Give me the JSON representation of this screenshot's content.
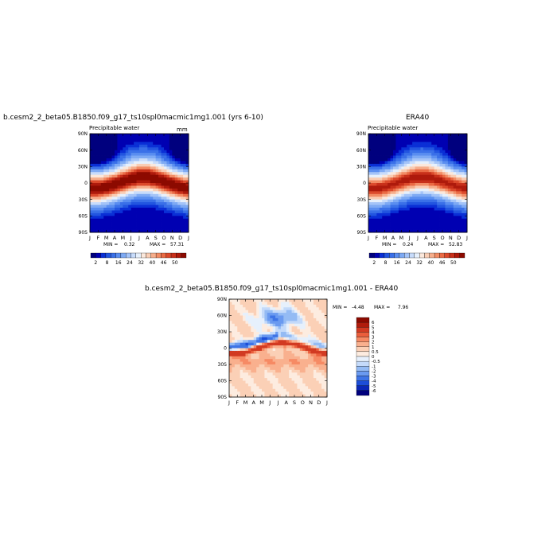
{
  "chart_data": [
    {
      "type": "heatmap",
      "title": "b.cesm2_2_beta05.B1850.f09_g17_ts10spl0macmic1mg1.001 (yrs 6-10)",
      "subtitle": "Precipitable water",
      "units": "mm",
      "x_ticks": [
        "J",
        "F",
        "M",
        "A",
        "M",
        "J",
        "J",
        "A",
        "S",
        "O",
        "N",
        "D",
        "J"
      ],
      "y_ticks": [
        "90N",
        "60N",
        "30N",
        "0",
        "30S",
        "60S",
        "90S"
      ],
      "min_label": "MIN =    0.32",
      "max_label": "MAX =   57.31",
      "min": 0.32,
      "max": 57.31,
      "colorbar_levels": [
        0,
        2,
        4,
        6,
        8,
        12,
        16,
        20,
        24,
        28,
        32,
        36,
        40,
        43,
        46,
        48,
        50,
        52,
        55,
        60
      ],
      "colorbar_labels": [
        "2",
        "8",
        "16",
        "24",
        "32",
        "40",
        "46",
        "50"
      ],
      "colorbar_colors": [
        "#00007e",
        "#0000b2",
        "#0a2fd6",
        "#2255e0",
        "#3a70e8",
        "#5a8ef0",
        "#7eaaf4",
        "#a4c4f8",
        "#c8dcfb",
        "#e6f0fc",
        "#fbe8dc",
        "#f9cdb4",
        "#f6ae8c",
        "#f28c65",
        "#ea6b45",
        "#dc4a2c",
        "#c8301a",
        "#ae1a0c",
        "#8c0a00"
      ]
    },
    {
      "type": "heatmap",
      "title": "ERA40",
      "subtitle": "Precipitable water",
      "x_ticks": [
        "J",
        "F",
        "M",
        "A",
        "M",
        "J",
        "J",
        "A",
        "S",
        "O",
        "N",
        "D",
        "J"
      ],
      "y_ticks": [
        "90N",
        "60N",
        "30N",
        "0",
        "30S",
        "60S",
        "90S"
      ],
      "min_label": "MIN =    0.24",
      "max_label": "MAX =   52.83",
      "min": 0.24,
      "max": 52.83,
      "colorbar_labels": [
        "2",
        "8",
        "16",
        "24",
        "32",
        "40",
        "46",
        "50"
      ]
    },
    {
      "type": "heatmap",
      "title": "b.cesm2_2_beta05.B1850.f09_g17_ts10spl0macmic1mg1.001 - ERA40",
      "x_ticks": [
        "J",
        "F",
        "M",
        "A",
        "M",
        "J",
        "J",
        "A",
        "S",
        "O",
        "N",
        "D",
        "J"
      ],
      "y_ticks": [
        "90N",
        "60N",
        "30N",
        "0",
        "30S",
        "60S",
        "90S"
      ],
      "min_label": "MIN =   -4.48",
      "max_label": "MAX =     7.96",
      "min": -4.48,
      "max": 7.96,
      "colorbar_levels": [
        -6,
        -5,
        -4,
        -3,
        -2,
        -1,
        -0.5,
        0,
        0.5,
        1,
        2,
        3,
        4,
        5,
        6
      ],
      "colorbar_labels": [
        "6",
        "5",
        "4",
        "3",
        "2",
        "1",
        "0.5",
        "0",
        "-0.5",
        "-1",
        "-2",
        "-3",
        "-4",
        "-5",
        "-6"
      ],
      "colorbar_colors": [
        "#8c0a00",
        "#b01c0c",
        "#d23a22",
        "#ea5e3c",
        "#f68a64",
        "#f9b08e",
        "#fbd0b6",
        "#fdece0",
        "#e6f0fc",
        "#c4dafa",
        "#94bbf4",
        "#6a9af0",
        "#3e74e6",
        "#1c4ed8",
        "#0a28b8",
        "#00007e"
      ]
    }
  ]
}
